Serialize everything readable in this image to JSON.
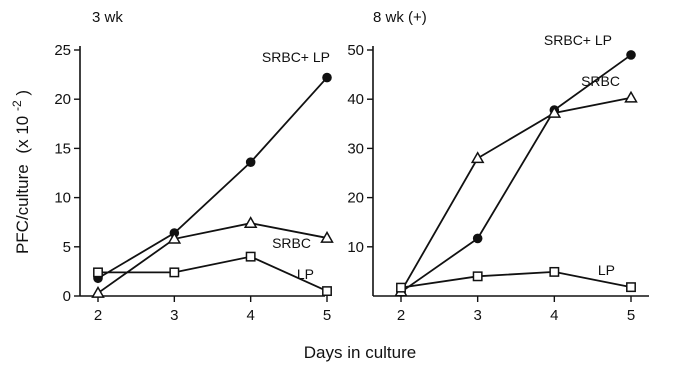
{
  "figure": {
    "xlabel": "Days in culture",
    "ylabel": "PFC/culture",
    "ylabel_unit": "(x 10",
    "ylabel_exp": "-2",
    "ylabel_close": ")"
  },
  "chart_data": [
    {
      "type": "line",
      "title": "3 wk",
      "x": [
        2,
        3,
        4,
        5
      ],
      "xticks": [
        "2",
        "3",
        "4",
        "5"
      ],
      "yticks": [
        "0",
        "5",
        "10",
        "15",
        "20",
        "25"
      ],
      "ylim": [
        0,
        25
      ],
      "xlim": [
        2,
        5
      ],
      "grid": false,
      "legend": "none (series labeled at line ends)",
      "series": [
        {
          "name": "SRBC+ LP",
          "marker": "filled-circle",
          "values": [
            1.8,
            6.4,
            13.6,
            22.2
          ]
        },
        {
          "name": "SRBC",
          "marker": "open-triangle",
          "values": [
            0.3,
            5.8,
            7.4,
            5.9
          ]
        },
        {
          "name": "LP",
          "marker": "open-square",
          "values": [
            2.4,
            2.4,
            4.0,
            0.5
          ]
        }
      ]
    },
    {
      "type": "line",
      "title": "8 wk (+)",
      "x": [
        2,
        3,
        4,
        5
      ],
      "xticks": [
        "2",
        "3",
        "4",
        "5"
      ],
      "yticks": [
        "10",
        "20",
        "30",
        "40",
        "50"
      ],
      "ylim": [
        0,
        50
      ],
      "xlim": [
        2,
        5
      ],
      "grid": false,
      "legend": "none (series labeled at line ends)",
      "series": [
        {
          "name": "SRBC+ LP",
          "marker": "filled-circle",
          "values": [
            0.8,
            11.7,
            37.8,
            49.0
          ]
        },
        {
          "name": "SRBC",
          "marker": "open-triangle",
          "values": [
            0.9,
            28.0,
            37.2,
            40.3
          ]
        },
        {
          "name": "LP",
          "marker": "open-square",
          "values": [
            1.7,
            4.0,
            4.9,
            1.8
          ]
        }
      ]
    }
  ]
}
